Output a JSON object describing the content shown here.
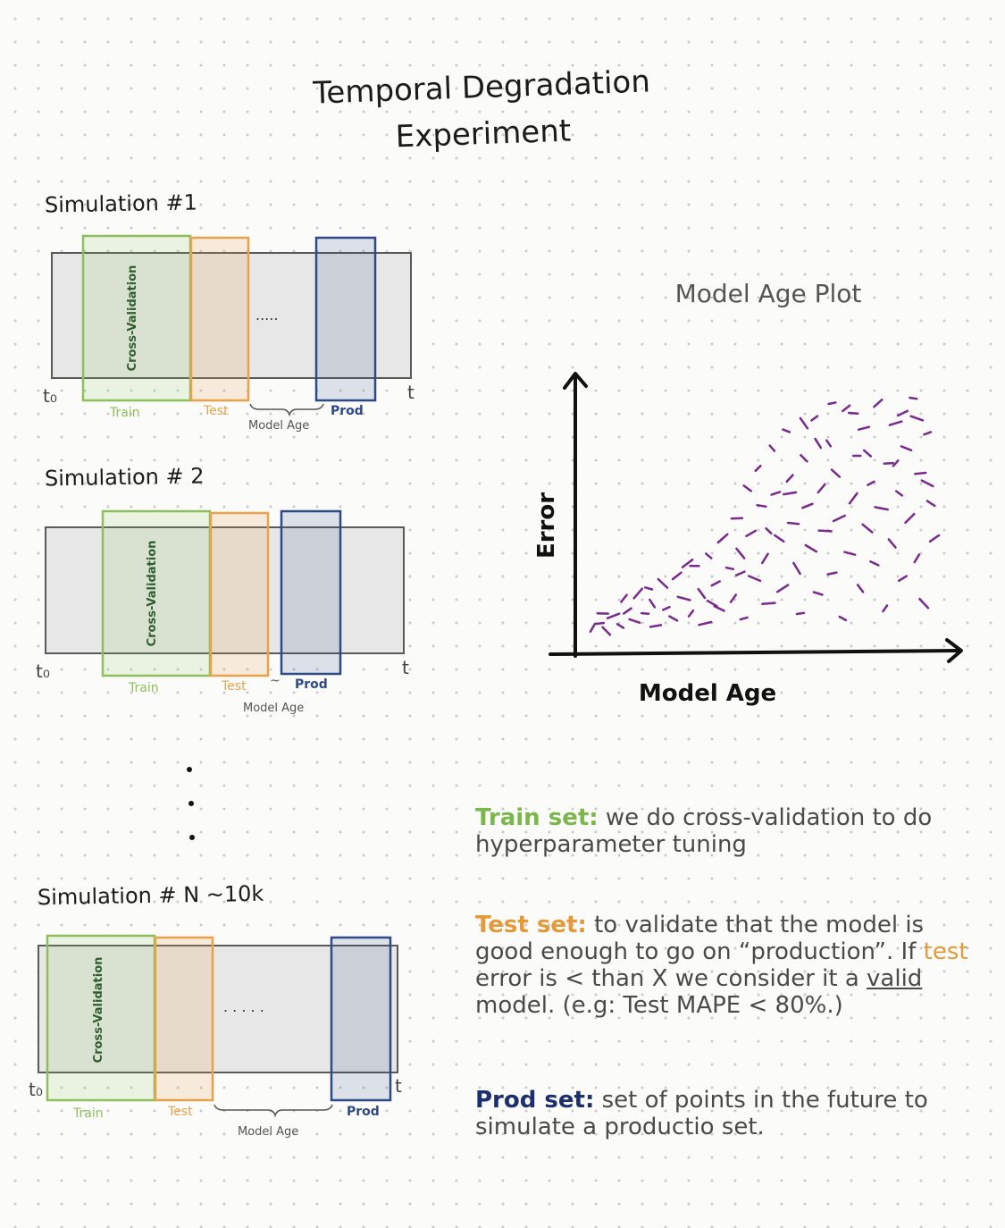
{
  "title": {
    "line1": "Temporal Degradation",
    "line2": "Experiment"
  },
  "simulations": [
    {
      "label": "Simulation #1",
      "cv": "Cross-Validation",
      "t0": "t₀",
      "t": "t",
      "train": "Train",
      "test": "Test",
      "gap": ".....",
      "age": "Model Age",
      "prod": "Prod"
    },
    {
      "label": "Simulation # 2",
      "cv": "Cross-Validation",
      "t0": "t₀",
      "t": "t",
      "train": "Train",
      "test": "Test",
      "gap": "~",
      "age": "Model Age",
      "prod": "Prod"
    },
    {
      "label": "Simulation # N ~10k",
      "cv": "Cross-Validation",
      "t0": "t₀",
      "t": "t",
      "train": "Train",
      "test": "Test",
      "gap": ". . . . .",
      "age": "Model Age",
      "prod": "Prod"
    }
  ],
  "colors": {
    "train": "#8dc05a",
    "test": "#e9a24a",
    "prod": "#2e4a86",
    "timeline": "#555555",
    "points": "#7a2a8c",
    "cv_text": "#2e5e2e"
  },
  "chart_data": {
    "type": "scatter",
    "title": "Model Age Plot",
    "xlabel": "Model Age",
    "ylabel": "Error",
    "x_ticks": [],
    "y_ticks": [],
    "points": [
      [
        0.02,
        0.06
      ],
      [
        0.04,
        0.08
      ],
      [
        0.06,
        0.05
      ],
      [
        0.08,
        0.11
      ],
      [
        0.1,
        0.07
      ],
      [
        0.12,
        0.13
      ],
      [
        0.14,
        0.09
      ],
      [
        0.15,
        0.2
      ],
      [
        0.17,
        0.12
      ],
      [
        0.19,
        0.16
      ],
      [
        0.2,
        0.07
      ],
      [
        0.22,
        0.24
      ],
      [
        0.23,
        0.14
      ],
      [
        0.25,
        0.1
      ],
      [
        0.26,
        0.27
      ],
      [
        0.28,
        0.18
      ],
      [
        0.3,
        0.12
      ],
      [
        0.31,
        0.31
      ],
      [
        0.33,
        0.2
      ],
      [
        0.34,
        0.08
      ],
      [
        0.35,
        0.35
      ],
      [
        0.37,
        0.24
      ],
      [
        0.38,
        0.14
      ],
      [
        0.39,
        0.42
      ],
      [
        0.41,
        0.3
      ],
      [
        0.42,
        0.18
      ],
      [
        0.43,
        0.5
      ],
      [
        0.44,
        0.36
      ],
      [
        0.45,
        0.1
      ],
      [
        0.46,
        0.62
      ],
      [
        0.47,
        0.44
      ],
      [
        0.48,
        0.26
      ],
      [
        0.49,
        0.7
      ],
      [
        0.5,
        0.55
      ],
      [
        0.51,
        0.34
      ],
      [
        0.52,
        0.16
      ],
      [
        0.53,
        0.78
      ],
      [
        0.54,
        0.6
      ],
      [
        0.55,
        0.42
      ],
      [
        0.56,
        0.22
      ],
      [
        0.57,
        0.85
      ],
      [
        0.58,
        0.66
      ],
      [
        0.59,
        0.48
      ],
      [
        0.6,
        0.3
      ],
      [
        0.61,
        0.12
      ],
      [
        0.62,
        0.74
      ],
      [
        0.63,
        0.55
      ],
      [
        0.64,
        0.38
      ],
      [
        0.65,
        0.9
      ],
      [
        0.66,
        0.2
      ],
      [
        0.67,
        0.62
      ],
      [
        0.68,
        0.45
      ],
      [
        0.69,
        0.8
      ],
      [
        0.7,
        0.28
      ],
      [
        0.71,
        0.68
      ],
      [
        0.72,
        0.5
      ],
      [
        0.73,
        0.1
      ],
      [
        0.74,
        0.94
      ],
      [
        0.75,
        0.36
      ],
      [
        0.76,
        0.58
      ],
      [
        0.77,
        0.75
      ],
      [
        0.78,
        0.22
      ],
      [
        0.79,
        0.86
      ],
      [
        0.8,
        0.46
      ],
      [
        0.81,
        0.64
      ],
      [
        0.82,
        0.32
      ],
      [
        0.83,
        0.96
      ],
      [
        0.84,
        0.54
      ],
      [
        0.85,
        0.14
      ],
      [
        0.86,
        0.72
      ],
      [
        0.87,
        0.4
      ],
      [
        0.88,
        0.88
      ],
      [
        0.89,
        0.6
      ],
      [
        0.9,
        0.26
      ],
      [
        0.91,
        0.78
      ],
      [
        0.92,
        0.5
      ],
      [
        0.93,
        0.98
      ],
      [
        0.94,
        0.34
      ],
      [
        0.95,
        0.68
      ],
      [
        0.96,
        0.16
      ],
      [
        0.97,
        0.84
      ],
      [
        0.98,
        0.56
      ],
      [
        0.99,
        0.42
      ],
      [
        0.94,
        0.9
      ],
      [
        0.88,
        0.72
      ],
      [
        0.76,
        0.92
      ],
      [
        0.66,
        0.8
      ],
      [
        0.58,
        0.6
      ],
      [
        0.52,
        0.45
      ],
      [
        0.44,
        0.28
      ],
      [
        0.36,
        0.16
      ],
      [
        0.29,
        0.32
      ],
      [
        0.18,
        0.22
      ],
      [
        0.11,
        0.18
      ],
      [
        0.05,
        0.12
      ],
      [
        0.62,
        0.88
      ],
      [
        0.7,
        0.96
      ],
      [
        0.8,
        0.76
      ],
      [
        0.9,
        0.92
      ],
      [
        0.97,
        0.64
      ]
    ]
  },
  "notes": {
    "train_head": "Train set:",
    "train_text": "we do cross-validation to do hyperparameter tuning",
    "test_head": "Test set:",
    "test_text1": "to validate that the model is good enough to go on “production”. If",
    "test_word": "test",
    "test_text2": "error is < than X we consider it a",
    "valid_word": "valid",
    "test_text3": "model. (e.g: Test MAPE < 80%.)",
    "prod_head": "Prod set:",
    "prod_text": "set of points in the future to simulate a productio set."
  }
}
